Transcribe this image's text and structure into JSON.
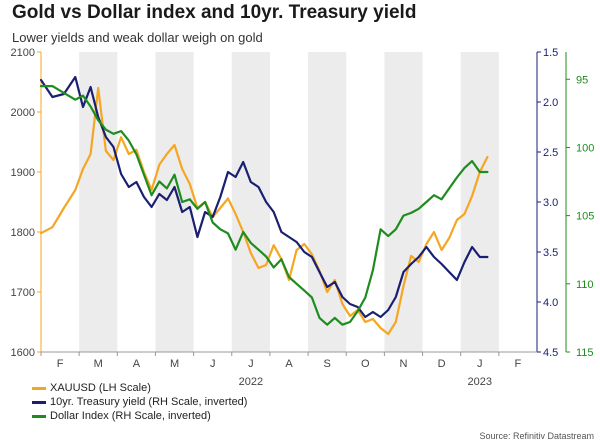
{
  "chart_data": {
    "type": "line",
    "title": "Gold vs Dollar index and 10yr. Treasury yield",
    "subtitle": "Lower yields and weak dollar weigh on gold",
    "x_ticks": [
      "F",
      "M",
      "A",
      "M",
      "J",
      "J",
      "A",
      "S",
      "O",
      "N",
      "D",
      "J",
      "F"
    ],
    "year_labels": [
      "2022",
      "2023"
    ],
    "left_axis": {
      "ticks": [
        1600,
        1700,
        1800,
        1900,
        2000,
        2100
      ],
      "ylim": [
        1600,
        2100
      ],
      "color": "#f5a623"
    },
    "right_axis_yield": {
      "ticks": [
        "1.5",
        "2.0",
        "2.5",
        "3.0",
        "3.5",
        "4.0",
        "4.5"
      ],
      "ylim": [
        4.5,
        1.5
      ],
      "inverted": true,
      "color": "#1a1f71"
    },
    "right_axis_dxy": {
      "ticks": [
        "95",
        "100",
        "105",
        "110",
        "115"
      ],
      "ylim": [
        115,
        93
      ],
      "inverted": true,
      "color": "#1e8c1e"
    },
    "shaded_months": [
      1,
      3,
      5,
      7,
      9,
      11
    ],
    "series": [
      {
        "name": "XAUUSD (LH Scale)",
        "axis": "left",
        "color": "#f5a623",
        "x": [
          0,
          0.3,
          0.6,
          0.9,
          1.1,
          1.3,
          1.5,
          1.7,
          1.9,
          2.1,
          2.3,
          2.5,
          2.7,
          2.9,
          3.1,
          3.3,
          3.5,
          3.7,
          3.9,
          4.1,
          4.3,
          4.5,
          4.7,
          4.9,
          5.1,
          5.3,
          5.5,
          5.7,
          5.9,
          6.1,
          6.3,
          6.5,
          6.7,
          6.9,
          7.1,
          7.3,
          7.5,
          7.7,
          7.9,
          8.1,
          8.3,
          8.5,
          8.7,
          8.9,
          9.1,
          9.3,
          9.5,
          9.7,
          9.9,
          10.1,
          10.3,
          10.5,
          10.7,
          10.9,
          11.1,
          11.3,
          11.5,
          11.7
        ],
        "values": [
          1798,
          1808,
          1840,
          1870,
          1905,
          1930,
          2040,
          1935,
          1920,
          1958,
          1930,
          1937,
          1900,
          1870,
          1912,
          1930,
          1945,
          1905,
          1880,
          1840,
          1850,
          1825,
          1840,
          1856,
          1830,
          1800,
          1765,
          1740,
          1745,
          1778,
          1755,
          1720,
          1770,
          1780,
          1763,
          1735,
          1700,
          1720,
          1680,
          1660,
          1670,
          1650,
          1655,
          1640,
          1630,
          1650,
          1710,
          1760,
          1750,
          1780,
          1800,
          1770,
          1790,
          1820,
          1830,
          1860,
          1900,
          1925
        ]
      },
      {
        "name": "10yr. Treasury yield (RH Scale, inverted)",
        "axis": "right_yield",
        "color": "#1a1f71",
        "x": [
          0,
          0.3,
          0.6,
          0.9,
          1.1,
          1.3,
          1.5,
          1.7,
          1.9,
          2.1,
          2.3,
          2.5,
          2.7,
          2.9,
          3.1,
          3.3,
          3.5,
          3.7,
          3.9,
          4.1,
          4.3,
          4.5,
          4.7,
          4.9,
          5.1,
          5.3,
          5.5,
          5.7,
          5.9,
          6.1,
          6.3,
          6.5,
          6.7,
          6.9,
          7.1,
          7.3,
          7.5,
          7.7,
          7.9,
          8.1,
          8.3,
          8.5,
          8.7,
          8.9,
          9.1,
          9.3,
          9.5,
          9.7,
          9.9,
          10.1,
          10.3,
          10.5,
          10.7,
          10.9,
          11.1,
          11.3,
          11.5,
          11.7
        ],
        "values": [
          1.78,
          1.95,
          1.92,
          1.75,
          2.05,
          1.85,
          2.15,
          2.35,
          2.45,
          2.72,
          2.85,
          2.8,
          2.95,
          3.05,
          2.92,
          2.98,
          2.85,
          3.1,
          3.05,
          3.35,
          3.1,
          3.15,
          2.95,
          2.7,
          2.75,
          2.6,
          2.8,
          2.85,
          3.0,
          3.1,
          3.3,
          3.35,
          3.4,
          3.5,
          3.55,
          3.7,
          3.85,
          3.8,
          3.95,
          4.02,
          4.05,
          4.15,
          4.1,
          4.15,
          4.08,
          3.95,
          3.7,
          3.62,
          3.55,
          3.45,
          3.55,
          3.62,
          3.7,
          3.78,
          3.6,
          3.45,
          3.55,
          3.55
        ]
      },
      {
        "name": "Dollar Index (RH Scale, inverted)",
        "axis": "right_dxy",
        "color": "#1e8c1e",
        "x": [
          0,
          0.3,
          0.6,
          0.9,
          1.1,
          1.3,
          1.5,
          1.7,
          1.9,
          2.1,
          2.3,
          2.5,
          2.7,
          2.9,
          3.1,
          3.3,
          3.5,
          3.7,
          3.9,
          4.1,
          4.3,
          4.5,
          4.7,
          4.9,
          5.1,
          5.3,
          5.5,
          5.7,
          5.9,
          6.1,
          6.3,
          6.5,
          6.7,
          6.9,
          7.1,
          7.3,
          7.5,
          7.7,
          7.9,
          8.1,
          8.3,
          8.5,
          8.7,
          8.9,
          9.1,
          9.3,
          9.5,
          9.7,
          9.9,
          10.1,
          10.3,
          10.5,
          10.7,
          10.9,
          11.1,
          11.3,
          11.5,
          11.7
        ],
        "values": [
          95.5,
          95.5,
          96.0,
          96.5,
          96.2,
          97.0,
          98.0,
          98.7,
          99.0,
          98.8,
          99.5,
          100.5,
          102.0,
          103.5,
          102.5,
          103.0,
          102.0,
          104.0,
          103.8,
          104.5,
          104.0,
          105.5,
          106.0,
          106.3,
          107.5,
          106.2,
          107.0,
          107.5,
          108.0,
          108.8,
          108.2,
          109.5,
          110.0,
          110.5,
          111.0,
          112.5,
          113.0,
          112.5,
          113.0,
          112.8,
          112.0,
          111.0,
          109.0,
          106.0,
          106.5,
          106.0,
          105.0,
          104.8,
          104.5,
          104.0,
          103.5,
          103.8,
          103.0,
          102.2,
          101.5,
          101.0,
          101.8,
          101.8
        ]
      }
    ]
  },
  "legend": {
    "items": [
      {
        "label": "XAUUSD (LH Scale)",
        "color": "#f5a623"
      },
      {
        "label": "10yr. Treasury yield (RH Scale, inverted)",
        "color": "#1a1f71"
      },
      {
        "label": "Dollar Index (RH Scale, inverted)",
        "color": "#1e8c1e"
      }
    ]
  },
  "source": "Source: Refinitiv Datastream"
}
